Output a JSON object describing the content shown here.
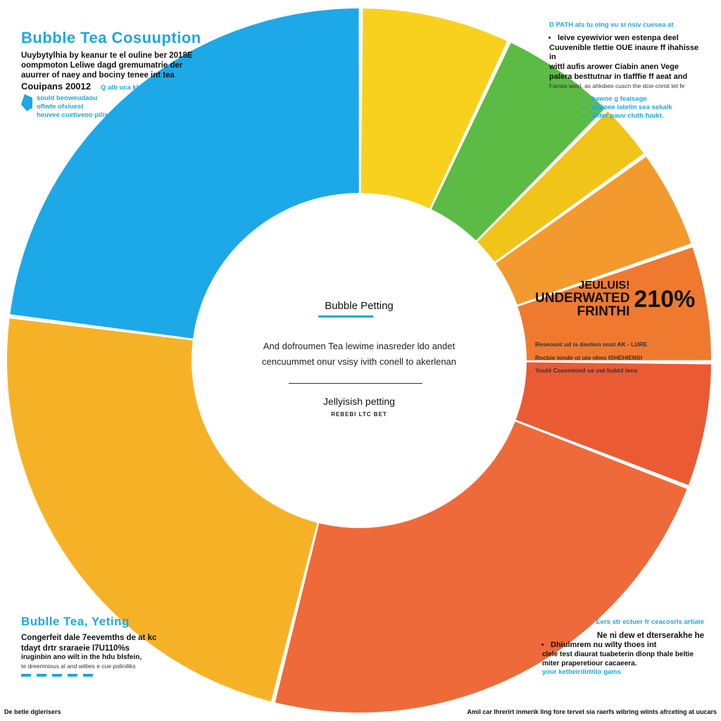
{
  "chart_data": {
    "type": "pie",
    "donut": true,
    "segments": [
      {
        "color": "#f7d11e",
        "value": 0.9
      },
      {
        "color": "#5cbb44",
        "value": 0.7
      },
      {
        "color": "#f0c419",
        "value": 0.35
      },
      {
        "color": "#f39a2e",
        "value": 0.6
      },
      {
        "color": "#ef7a2f",
        "value": 0.7
      },
      {
        "color": "#ea5b34",
        "value": 0.75
      },
      {
        "color": "#ee6a3a",
        "value": 3.0
      },
      {
        "color": "#f6b227",
        "value": 3.0
      },
      {
        "color": "#1da8e8",
        "value": 3.0
      }
    ],
    "annotation_value": "210%",
    "annotation_label": "UNDERWATED FRINTHI"
  },
  "top_left": {
    "title": "Bubble   Tea   Cosuuption",
    "line1": "Uuybytylhia by keanur te el ouline ber 2018E",
    "line2": "oompmoton Leliwe dagd gremumatrie der",
    "line3": "auurrer of naey and bociny tenee int tea",
    "line4": "Couipans 20012",
    "tag": "Q  alb  uca  kbe",
    "note1": "sould beoweudaou",
    "note2": "oflwte ofsiuest",
    "note3": "heuvee cuetiveoo pilisant and"
  },
  "top_right": {
    "header": "D  PATH ats tu oing  vu si nsiv cuesea at",
    "line1": "leive cyewivior wen estenpa deel",
    "line2": "Cuuvenible tlettie  OUE inaure ff ihahisse in",
    "line3": "wittl aufis arower  Ciabin  anen Vege",
    "line4": "palera besttutnar in tlafffie ff aeat and",
    "line5": "Fanwa weirl. as ahlobeo cuscn the dcie cnmit tet fe",
    "b1": "hawoe g feaisage",
    "b2": "bdtioee latetin sea sekalk",
    "b3": "ditter pauv cluth fuukt."
  },
  "center": {
    "title": "Bubble Petting",
    "line1": "And dofroumen Tea lewime inasreder ldo andet",
    "line2": "cencuummet onur vsisy ivith conell to akerlenan",
    "sub": "Jellyisish petting",
    "cap": "REBEBI   LTC BET"
  },
  "right_mid": {
    "big": "210%",
    "under1": "JEULUIS!",
    "under2": "UNDERWATED",
    "under3": "FRINTHI",
    "r1": "Reseount ud is deetion noot AK - LURE",
    "r2": "Rocbie tonde  ot ute nhes   ISHEHIENSI",
    "r3": "Yould Cosemtoed ue out bubtd tens"
  },
  "bottom_left": {
    "title": "Bublle Tea,  Yeting",
    "line1": "Congerfeit dale  7eevemths de at kc",
    "line2": "tdayt drtr sraraeie  I7U110%s",
    "line3": "iruginbin ano wilt in the hdu blsfein,",
    "line4": "te dreemnious al and wiities  e cue  poliniliks"
  },
  "bottom_right": {
    "header": "Eers str ectuer fr ceacosrls artiate",
    "line1": "Ne ni dew et dterserakhe he",
    "line2": "Dhiuimrem nu wilty thoes int",
    "line3": "clele test diaurat tuabeterin dlonp thale beltie",
    "line4": "miter praperetiour cacaeera.",
    "line5": "your ketbeirdirtrilo gams"
  },
  "footer": {
    "left": "De betle dglerisers",
    "right": "Amil car lhrerirt inmerik ling fore tervet sia raerfs wibring wiints afrceting at uucars"
  }
}
